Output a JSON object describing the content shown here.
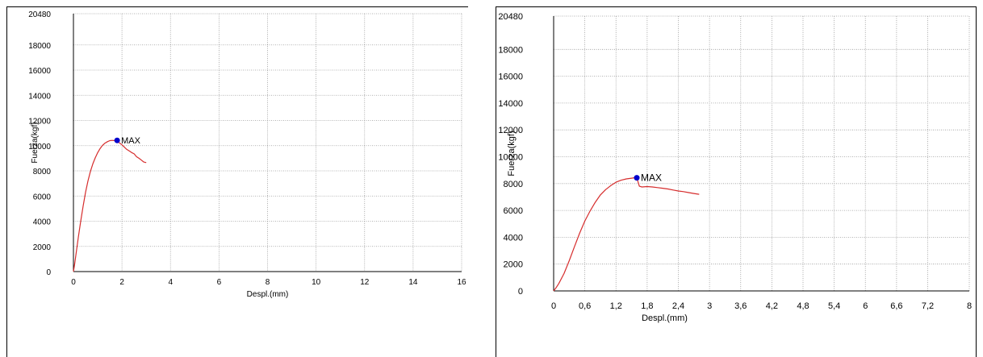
{
  "chart_data": [
    {
      "type": "line",
      "xlabel": "Despl.(mm)",
      "ylabel": "Fuerza(kgf)",
      "xlim": [
        0,
        16
      ],
      "ylim": [
        0,
        20480
      ],
      "x_ticks": [
        "0",
        "2",
        "4",
        "6",
        "8",
        "10",
        "12",
        "14",
        "16"
      ],
      "y_ticks": [
        "0",
        "2000",
        "4000",
        "6000",
        "8000",
        "10000",
        "12000",
        "14000",
        "16000",
        "18000",
        "20480"
      ],
      "grid": true,
      "line_color": "#d62d2d",
      "marker_color": "#0000cc",
      "series": [
        {
          "x": [
            0,
            0.05,
            0.1,
            0.2,
            0.3,
            0.4,
            0.5,
            0.6,
            0.7,
            0.8,
            0.9,
            1.0,
            1.1,
            1.2,
            1.3,
            1.4,
            1.5,
            1.6,
            1.7,
            1.8,
            1.9,
            2.0,
            2.1,
            2.2,
            2.3,
            2.4,
            2.5,
            2.6,
            2.7,
            2.8,
            2.9,
            3.0
          ],
          "y": [
            0,
            600,
            1300,
            2700,
            4000,
            5200,
            6300,
            7200,
            7950,
            8550,
            9050,
            9450,
            9780,
            10030,
            10200,
            10320,
            10400,
            10420,
            10400,
            10330,
            10220,
            10070,
            9880,
            9700,
            9580,
            9450,
            9350,
            9120,
            9000,
            8850,
            8700,
            8650
          ]
        }
      ],
      "annotation": {
        "label": "MAX",
        "x": 1.8,
        "y": 10420
      }
    },
    {
      "type": "line",
      "xlabel": "Despl.(mm)",
      "ylabel": "Fuerza(kgf)",
      "xlim": [
        0,
        8
      ],
      "ylim": [
        0,
        20480
      ],
      "x_ticks": [
        "0",
        "0,6",
        "1,2",
        "1,8",
        "2,4",
        "3",
        "3,6",
        "4,2",
        "4,8",
        "5,4",
        "6",
        "6,6",
        "7,2",
        "8"
      ],
      "x_tick_values": [
        0,
        0.6,
        1.2,
        1.8,
        2.4,
        3,
        3.6,
        4.2,
        4.8,
        5.4,
        6,
        6.6,
        7.2,
        8
      ],
      "y_ticks": [
        "0",
        "2000",
        "4000",
        "6000",
        "8000",
        "10000",
        "12000",
        "14000",
        "16000",
        "18000",
        "20480"
      ],
      "grid": true,
      "line_color": "#d62d2d",
      "marker_color": "#0000cc",
      "series": [
        {
          "x": [
            0,
            0.05,
            0.1,
            0.2,
            0.3,
            0.4,
            0.5,
            0.6,
            0.7,
            0.8,
            0.9,
            1.0,
            1.1,
            1.2,
            1.3,
            1.4,
            1.5,
            1.55,
            1.6,
            1.65,
            1.7,
            1.8,
            1.9,
            2.0,
            2.1,
            2.2,
            2.3,
            2.4,
            2.5,
            2.6,
            2.7,
            2.8
          ],
          "y": [
            0,
            250,
            550,
            1300,
            2250,
            3300,
            4300,
            5200,
            5950,
            6600,
            7150,
            7550,
            7850,
            8100,
            8250,
            8350,
            8400,
            8430,
            8430,
            7800,
            7750,
            7780,
            7750,
            7700,
            7650,
            7600,
            7520,
            7450,
            7400,
            7330,
            7260,
            7200
          ]
        }
      ],
      "annotation": {
        "label": "MAX",
        "x": 1.6,
        "y": 8430
      }
    }
  ]
}
